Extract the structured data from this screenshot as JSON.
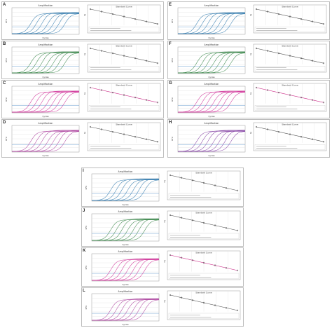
{
  "figure": {
    "panels": [
      {
        "letter": "A",
        "amp_title": "Amplification",
        "std_title": "Standard Curve",
        "xlabel_amp": "Cycles",
        "ylabel_amp": "RFU",
        "xlabel_std": "Log Starting Quantity",
        "ylabel_std": "Cq",
        "curve_color": "#3a7fb0",
        "std_line_color": "#555555"
      },
      {
        "letter": "B",
        "amp_title": "Amplification",
        "std_title": "Standard Curve",
        "xlabel_amp": "Cycles",
        "ylabel_amp": "RFU",
        "xlabel_std": "Log Starting Quantity",
        "ylabel_std": "Cq",
        "curve_color": "#3f8a4f",
        "std_line_color": "#555555"
      },
      {
        "letter": "C",
        "amp_title": "Amplification",
        "std_title": "Standard Curve",
        "xlabel_amp": "Cycles",
        "ylabel_amp": "RFU",
        "xlabel_std": "Log Starting Quantity",
        "ylabel_std": "Cq",
        "curve_color": "#d23a9c",
        "std_line_color": "#cc2f8a"
      },
      {
        "letter": "D",
        "amp_title": "Amplification",
        "std_title": "Standard Curve",
        "xlabel_amp": "Cycles",
        "ylabel_amp": "RFU",
        "xlabel_std": "Log Starting Quantity",
        "ylabel_std": "Cq",
        "curve_color": "#b04aa3",
        "std_line_color": "#555555"
      },
      {
        "letter": "E",
        "amp_title": "Amplification",
        "std_title": "Standard Curve",
        "xlabel_amp": "Cycles",
        "ylabel_amp": "RFU",
        "xlabel_std": "Log Starting Quantity",
        "ylabel_std": "Cq",
        "curve_color": "#3a7fb0",
        "std_line_color": "#555555"
      },
      {
        "letter": "F",
        "amp_title": "Amplification",
        "std_title": "Standard Curve",
        "xlabel_amp": "Cycles",
        "ylabel_amp": "RFU",
        "xlabel_std": "Log Starting Quantity",
        "ylabel_std": "Cq",
        "curve_color": "#3f8a4f",
        "std_line_color": "#555555"
      },
      {
        "letter": "G",
        "amp_title": "Amplification",
        "std_title": "Standard Curve",
        "xlabel_amp": "Cycles",
        "ylabel_amp": "RFU",
        "xlabel_std": "Log Starting Quantity",
        "ylabel_std": "Cq",
        "curve_color": "#d23a9c",
        "std_line_color": "#cc2f8a"
      },
      {
        "letter": "H",
        "amp_title": "Amplification",
        "std_title": "Standard Curve",
        "xlabel_amp": "Cycles",
        "ylabel_amp": "RFU",
        "xlabel_std": "Log Starting Quantity",
        "ylabel_std": "Cq",
        "curve_color": "#8b4aa8",
        "std_line_color": "#555555"
      },
      {
        "letter": "I",
        "amp_title": "Amplification",
        "std_title": "Standard Curve",
        "xlabel_amp": "Cycles",
        "ylabel_amp": "RFU",
        "xlabel_std": "Log Starting Quantity",
        "ylabel_std": "Cq",
        "curve_color": "#3a7fb0",
        "std_line_color": "#555555"
      },
      {
        "letter": "J",
        "amp_title": "Amplification",
        "std_title": "Standard Curve",
        "xlabel_amp": "Cycles",
        "ylabel_amp": "RFU",
        "xlabel_std": "Log Starting Quantity",
        "ylabel_std": "Cq",
        "curve_color": "#3f8a4f",
        "std_line_color": "#555555"
      },
      {
        "letter": "K",
        "amp_title": "Amplification",
        "std_title": "Standard Curve",
        "xlabel_amp": "Cycles",
        "ylabel_amp": "RFU",
        "xlabel_std": "Log Starting Quantity",
        "ylabel_std": "Cq",
        "curve_color": "#d23a9c",
        "std_line_color": "#cc2f8a"
      },
      {
        "letter": "L",
        "amp_title": "Amplification",
        "std_title": "Standard Curve",
        "xlabel_amp": "Cycles",
        "ylabel_amp": "RFU",
        "xlabel_std": "Log Starting Quantity",
        "ylabel_std": "Cq",
        "curve_color": "#b04aa3",
        "std_line_color": "#555555"
      }
    ]
  }
}
